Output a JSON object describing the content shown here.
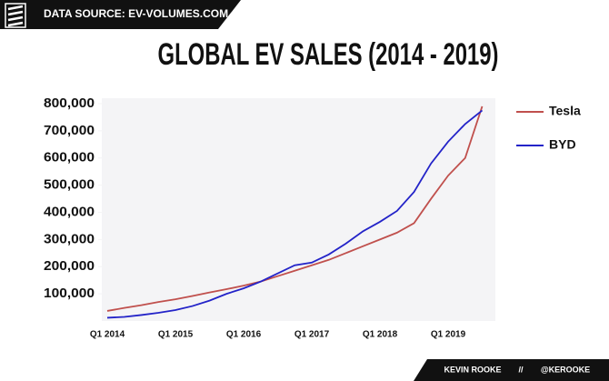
{
  "header": {
    "source": "DATA SOURCE: EV-VOLUMES.COM"
  },
  "footer": {
    "author": "KEVIN ROOKE",
    "separator": "//",
    "handle": "@KEROOKE"
  },
  "chart_data": {
    "type": "line",
    "title": "GLOBAL EV SALES (2014 - 2019)",
    "categories": [
      "Q1 2014",
      null,
      null,
      null,
      "Q1 2015",
      null,
      null,
      null,
      "Q1 2016",
      null,
      null,
      null,
      "Q1 2017",
      null,
      null,
      null,
      "Q1 2018",
      null,
      null,
      null,
      "Q1 2019",
      null,
      null
    ],
    "series": [
      {
        "name": "Tesla",
        "color": "#c0504d",
        "values": [
          37000,
          48000,
          58000,
          70000,
          80000,
          92000,
          105000,
          117000,
          130000,
          145000,
          165000,
          185000,
          205000,
          225000,
          250000,
          275000,
          300000,
          325000,
          360000,
          450000,
          535000,
          600000,
          790000
        ]
      },
      {
        "name": "BYD",
        "color": "#2323c8",
        "values": [
          12000,
          15000,
          22000,
          30000,
          40000,
          55000,
          75000,
          100000,
          120000,
          145000,
          175000,
          205000,
          215000,
          245000,
          285000,
          330000,
          365000,
          405000,
          475000,
          580000,
          660000,
          725000,
          775000
        ]
      }
    ],
    "ylim": [
      0,
      820000
    ],
    "yticks": [
      {
        "value": 100000,
        "label": "100,000"
      },
      {
        "value": 200000,
        "label": "200,000"
      },
      {
        "value": 300000,
        "label": "300,000"
      },
      {
        "value": 400000,
        "label": "400,000"
      },
      {
        "value": 500000,
        "label": "500,000"
      },
      {
        "value": 600000,
        "label": "600,000"
      },
      {
        "value": 700000,
        "label": "700,000"
      },
      {
        "value": 800000,
        "label": "800,000"
      }
    ],
    "legend": "right"
  }
}
